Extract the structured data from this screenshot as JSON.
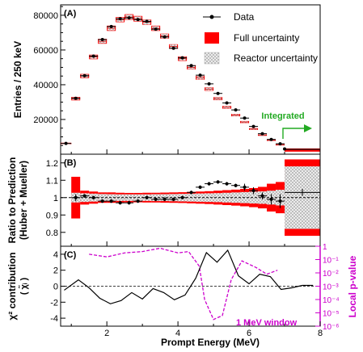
{
  "chart_data": [
    {
      "type": "bar",
      "panel_label": "(A)",
      "ylabel": "Entries / 250 keV",
      "ylim": [
        0,
        86000
      ],
      "yticks": [
        20000,
        40000,
        60000,
        80000
      ],
      "xlim": [
        0.7,
        8
      ],
      "bin_width": 0.25,
      "x": [
        0.7,
        1.0,
        1.25,
        1.5,
        1.75,
        2.0,
        2.25,
        2.5,
        2.75,
        3.0,
        3.25,
        3.5,
        3.75,
        4.0,
        4.25,
        4.5,
        4.75,
        5.0,
        5.25,
        5.5,
        5.75,
        6.0,
        6.25,
        6.5,
        6.75,
        7.0
      ],
      "prediction": [
        6200,
        32000,
        45000,
        56000,
        65000,
        72500,
        77500,
        79000,
        78000,
        76000,
        72500,
        68000,
        62000,
        55000,
        50000,
        44000,
        37500,
        32000,
        27000,
        22500,
        18500,
        14500,
        11000,
        8000,
        5500,
        2800
      ],
      "reactor_band": [
        300,
        700,
        900,
        1000,
        1100,
        1200,
        1200,
        1300,
        1300,
        1300,
        1200,
        1200,
        1100,
        1000,
        1000,
        900,
        800,
        700,
        600,
        550,
        450,
        380,
        300,
        220,
        160,
        80
      ],
      "full_band": [
        400,
        1000,
        1200,
        1300,
        1400,
        1500,
        1500,
        1600,
        1600,
        1500,
        1500,
        1400,
        1300,
        1300,
        1200,
        1100,
        1000,
        900,
        800,
        700,
        600,
        500,
        420,
        320,
        240,
        160
      ],
      "data": [
        6200,
        32200,
        45200,
        56500,
        66000,
        73500,
        78000,
        78500,
        77500,
        76500,
        72000,
        67500,
        61000,
        55500,
        51000,
        45500,
        40500,
        35000,
        29500,
        25500,
        20800,
        16000,
        11800,
        8500,
        6000,
        3000
      ],
      "data_err": [
        200,
        300,
        300,
        300,
        350,
        350,
        400,
        400,
        400,
        400,
        350,
        350,
        350,
        300,
        300,
        300,
        300,
        250,
        250,
        250,
        200,
        200,
        200,
        150,
        150,
        100
      ],
      "legend": [
        "Data",
        "Full uncertainty",
        "Reactor uncertainty"
      ],
      "legend_position": "top-right",
      "annotation": "Integrated",
      "integrated": {
        "x_range": [
          7.0,
          8.0
        ],
        "data": 2800,
        "prediction": 2400
      }
    },
    {
      "type": "line",
      "panel_label": "(B)",
      "ylabel": "Ratio to Prediction",
      "ylabel2": "(Huber + Mueller)",
      "ylim": [
        0.72,
        1.25
      ],
      "yticks": [
        0.8,
        0.9,
        1.0,
        1.1,
        1.2
      ],
      "x": [
        1.125,
        1.375,
        1.625,
        1.875,
        2.125,
        2.375,
        2.625,
        2.875,
        3.125,
        3.375,
        3.625,
        3.875,
        4.125,
        4.375,
        4.625,
        4.875,
        5.125,
        5.375,
        5.625,
        5.875,
        6.125,
        6.375,
        6.625,
        6.875
      ],
      "ratio": [
        1.0,
        1.01,
        1.0,
        0.98,
        0.98,
        0.97,
        0.97,
        0.98,
        1.0,
        0.99,
        0.99,
        0.99,
        1.0,
        1.03,
        1.06,
        1.08,
        1.09,
        1.08,
        1.07,
        1.06,
        1.04,
        1.01,
        0.99,
        0.98
      ],
      "ratio_err": [
        0.02,
        0.01,
        0.01,
        0.01,
        0.01,
        0.01,
        0.01,
        0.01,
        0.01,
        0.01,
        0.01,
        0.01,
        0.01,
        0.01,
        0.01,
        0.01,
        0.01,
        0.01,
        0.01,
        0.02,
        0.02,
        0.02,
        0.03,
        0.04
      ],
      "full_band_half": [
        0.12,
        0.04,
        0.035,
        0.03,
        0.03,
        0.028,
        0.027,
        0.027,
        0.028,
        0.028,
        0.029,
        0.03,
        0.031,
        0.033,
        0.035,
        0.037,
        0.04,
        0.043,
        0.046,
        0.05,
        0.055,
        0.062,
        0.08,
        0.09
      ],
      "reactor_band_half": [
        0.028,
        0.025,
        0.023,
        0.021,
        0.02,
        0.019,
        0.019,
        0.019,
        0.019,
        0.02,
        0.02,
        0.021,
        0.022,
        0.023,
        0.024,
        0.025,
        0.026,
        0.028,
        0.03,
        0.032,
        0.034,
        0.036,
        0.04,
        0.045
      ],
      "integrated": {
        "x_range": [
          7.0,
          8.0
        ],
        "ratio": 1.03,
        "full_half": 0.22,
        "reactor_half": 0.18
      }
    },
    {
      "type": "line",
      "panel_label": "(C)",
      "ylabel": "χ² contribution",
      "ylabel2": "( χ̃ᵢ )",
      "ylim": [
        -5,
        5
      ],
      "yticks": [
        -4,
        -2,
        0,
        2,
        4
      ],
      "y2label": "Local p-value",
      "y2lim_log10": [
        -6,
        0
      ],
      "y2ticks": [
        "10⁻⁶",
        "10⁻⁵",
        "10⁻⁴",
        "10⁻³",
        "10⁻²",
        "10⁻¹",
        "1"
      ],
      "xlabel": "Prompt Energy (MeV)",
      "xticks": [
        2,
        4,
        6,
        8
      ],
      "chi_x": [
        0.8,
        1.2,
        1.5,
        1.8,
        2.1,
        2.4,
        2.7,
        3.0,
        3.3,
        3.6,
        3.9,
        4.2,
        4.5,
        4.8,
        5.1,
        5.4,
        5.7,
        6.0,
        6.3,
        6.6,
        6.9,
        7.2,
        7.5,
        7.8
      ],
      "chi_y": [
        -0.5,
        0.8,
        -0.2,
        -1.5,
        -2.2,
        -1.8,
        -0.8,
        -1.6,
        -0.3,
        -0.8,
        -1.7,
        -1.1,
        1.0,
        4.2,
        3.0,
        4.5,
        1.3,
        0.3,
        1.5,
        1.2,
        -0.4,
        -0.2,
        0.1,
        0.1
      ],
      "pval_x": [
        1.5,
        2.0,
        2.5,
        3.0,
        3.5,
        4.0,
        4.3,
        4.6,
        4.75,
        5.0,
        5.25,
        5.5,
        5.8,
        6.2,
        6.5,
        6.8
      ],
      "pval_log10": [
        -0.6,
        -0.8,
        -0.5,
        -0.4,
        -0.15,
        -0.5,
        -0.4,
        -1.5,
        -4.0,
        -5.5,
        -5.2,
        -2.5,
        -1.1,
        -1.6,
        -2.1,
        -1.8
      ],
      "annotation": "1 MeV window",
      "pval_color": "#cc00cc"
    }
  ]
}
